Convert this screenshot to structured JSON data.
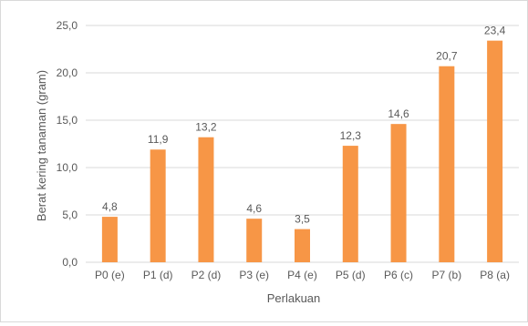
{
  "chart_data": {
    "type": "bar",
    "categories": [
      "P0 (e)",
      "P1 (d)",
      "P2 (d)",
      "P3 (e)",
      "P4 (e)",
      "P5 (d)",
      "P6 (c)",
      "P7 (b)",
      "P8 (a)"
    ],
    "values": [
      4.8,
      11.9,
      13.2,
      4.6,
      3.5,
      12.3,
      14.6,
      20.7,
      23.4
    ],
    "data_labels": [
      "4,8",
      "11,9",
      "13,2",
      "4,6",
      "3,5",
      "12,3",
      "14,6",
      "20,7",
      "23,4"
    ],
    "title": "",
    "xlabel": "Perlakuan",
    "ylabel": "Berat kering tanaman (gram)",
    "ylim": [
      0,
      25
    ],
    "yticks": [
      0,
      5,
      10,
      15,
      20,
      25
    ],
    "ytick_labels": [
      "0,0",
      "5,0",
      "10,0",
      "15,0",
      "20,0",
      "25,0"
    ],
    "grid": "horizontal",
    "legend": "none",
    "bar_color": "#f79646",
    "gridline_color": "#d9d9d9",
    "text_color": "#595959"
  }
}
